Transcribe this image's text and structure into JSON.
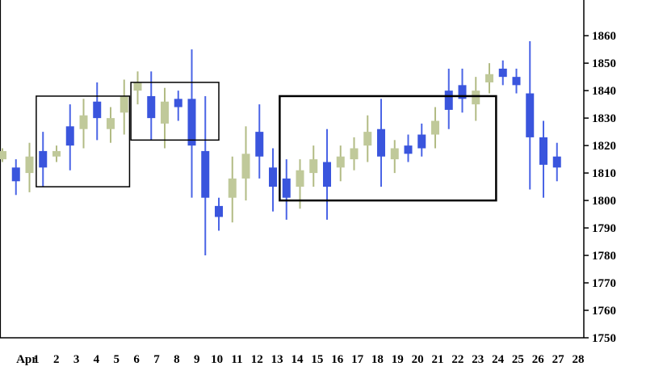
{
  "chart_data": {
    "type": "candlestick",
    "y_ticks": [
      1750,
      1760,
      1770,
      1780,
      1790,
      1800,
      1810,
      1820,
      1830,
      1840,
      1850,
      1860
    ],
    "ylim": [
      1750,
      1873
    ],
    "x_tick_labels": [
      "Apr",
      "1",
      "2",
      "3",
      "4",
      "5",
      "6",
      "7",
      "8",
      "9",
      "10",
      "11",
      "12",
      "13",
      "14",
      "15",
      "16",
      "17",
      "18",
      "19",
      "20",
      "21",
      "22",
      "23",
      "24",
      "25",
      "26",
      "27",
      "28"
    ],
    "colors": {
      "up": "#c0c99a",
      "down": "#3a55dd",
      "up_wick": "#b2bb84",
      "down_wick": "#4a64e6",
      "frame": "#000000",
      "box": "#000000"
    },
    "candles": [
      {
        "x": 0,
        "open": 1815,
        "close": 1818,
        "high": 1819,
        "low": 1814,
        "dir": "up"
      },
      {
        "x": 1,
        "open": 1812,
        "close": 1807,
        "high": 1815,
        "low": 1802,
        "dir": "down"
      },
      {
        "x": 2,
        "open": 1810,
        "close": 1816,
        "high": 1821,
        "low": 1803,
        "dir": "up"
      },
      {
        "x": 3,
        "open": 1818,
        "close": 1812,
        "high": 1825,
        "low": 1805,
        "dir": "down"
      },
      {
        "x": 4,
        "open": 1816,
        "close": 1818,
        "high": 1820,
        "low": 1814,
        "dir": "up"
      },
      {
        "x": 5,
        "open": 1827,
        "close": 1820,
        "high": 1835,
        "low": 1811,
        "dir": "down"
      },
      {
        "x": 6,
        "open": 1826,
        "close": 1831,
        "high": 1837,
        "low": 1819,
        "dir": "up"
      },
      {
        "x": 7,
        "open": 1836,
        "close": 1830,
        "high": 1843,
        "low": 1822,
        "dir": "down"
      },
      {
        "x": 8,
        "open": 1826,
        "close": 1830,
        "high": 1834,
        "low": 1821,
        "dir": "up"
      },
      {
        "x": 9,
        "open": 1832,
        "close": 1838,
        "high": 1844,
        "low": 1824,
        "dir": "up"
      },
      {
        "x": 10,
        "open": 1840,
        "close": 1843,
        "high": 1847,
        "low": 1835,
        "dir": "up"
      },
      {
        "x": 11,
        "open": 1838,
        "close": 1830,
        "high": 1847,
        "low": 1822,
        "dir": "down"
      },
      {
        "x": 12,
        "open": 1828,
        "close": 1836,
        "high": 1841,
        "low": 1819,
        "dir": "up"
      },
      {
        "x": 13,
        "open": 1837,
        "close": 1834,
        "high": 1840,
        "low": 1829,
        "dir": "down"
      },
      {
        "x": 14,
        "open": 1837,
        "close": 1820,
        "high": 1855,
        "low": 1801,
        "dir": "down"
      },
      {
        "x": 15,
        "open": 1818,
        "close": 1801,
        "high": 1838,
        "low": 1780,
        "dir": "down"
      },
      {
        "x": 16,
        "open": 1798,
        "close": 1794,
        "high": 1801,
        "low": 1789,
        "dir": "down"
      },
      {
        "x": 17,
        "open": 1801,
        "close": 1808,
        "high": 1816,
        "low": 1792,
        "dir": "up"
      },
      {
        "x": 18,
        "open": 1808,
        "close": 1817,
        "high": 1827,
        "low": 1800,
        "dir": "up"
      },
      {
        "x": 19,
        "open": 1825,
        "close": 1816,
        "high": 1835,
        "low": 1808,
        "dir": "down"
      },
      {
        "x": 20,
        "open": 1812,
        "close": 1805,
        "high": 1819,
        "low": 1796,
        "dir": "down"
      },
      {
        "x": 21,
        "open": 1808,
        "close": 1801,
        "high": 1815,
        "low": 1793,
        "dir": "down"
      },
      {
        "x": 22,
        "open": 1805,
        "close": 1811,
        "high": 1815,
        "low": 1797,
        "dir": "up"
      },
      {
        "x": 23,
        "open": 1810,
        "close": 1815,
        "high": 1820,
        "low": 1805,
        "dir": "up"
      },
      {
        "x": 24,
        "open": 1814,
        "close": 1805,
        "high": 1826,
        "low": 1793,
        "dir": "down"
      },
      {
        "x": 25,
        "open": 1812,
        "close": 1816,
        "high": 1820,
        "low": 1807,
        "dir": "up"
      },
      {
        "x": 26,
        "open": 1815,
        "close": 1819,
        "high": 1823,
        "low": 1811,
        "dir": "up"
      },
      {
        "x": 27,
        "open": 1820,
        "close": 1825,
        "high": 1831,
        "low": 1814,
        "dir": "up"
      },
      {
        "x": 28,
        "open": 1826,
        "close": 1816,
        "high": 1837,
        "low": 1805,
        "dir": "down"
      },
      {
        "x": 29,
        "open": 1815,
        "close": 1819,
        "high": 1822,
        "low": 1810,
        "dir": "up"
      },
      {
        "x": 30,
        "open": 1820,
        "close": 1817,
        "high": 1824,
        "low": 1814,
        "dir": "down"
      },
      {
        "x": 31,
        "open": 1824,
        "close": 1819,
        "high": 1828,
        "low": 1816,
        "dir": "down"
      },
      {
        "x": 32,
        "open": 1824,
        "close": 1829,
        "high": 1834,
        "low": 1819,
        "dir": "up"
      },
      {
        "x": 33,
        "open": 1840,
        "close": 1833,
        "high": 1848,
        "low": 1826,
        "dir": "down"
      },
      {
        "x": 34,
        "open": 1842,
        "close": 1837,
        "high": 1848,
        "low": 1832,
        "dir": "down"
      },
      {
        "x": 35,
        "open": 1835,
        "close": 1840,
        "high": 1845,
        "low": 1829,
        "dir": "up"
      },
      {
        "x": 36,
        "open": 1843,
        "close": 1846,
        "high": 1850,
        "low": 1839,
        "dir": "up"
      },
      {
        "x": 37,
        "open": 1848,
        "close": 1845,
        "high": 1851,
        "low": 1842,
        "dir": "down"
      },
      {
        "x": 38,
        "open": 1845,
        "close": 1842,
        "high": 1848,
        "low": 1839,
        "dir": "down"
      },
      {
        "x": 39,
        "open": 1839,
        "close": 1823,
        "high": 1858,
        "low": 1804,
        "dir": "down"
      },
      {
        "x": 40,
        "open": 1823,
        "close": 1813,
        "high": 1829,
        "low": 1801,
        "dir": "down"
      },
      {
        "x": 41,
        "open": 1816,
        "close": 1812,
        "high": 1821,
        "low": 1807,
        "dir": "down"
      }
    ],
    "boxes": [
      {
        "x0": 2.5,
        "x1": 9.4,
        "y0": 1805,
        "y1": 1838
      },
      {
        "x0": 9.5,
        "x1": 16.0,
        "y0": 1822,
        "y1": 1843
      },
      {
        "x0": 20.5,
        "x1": 36.5,
        "y0": 1800,
        "y1": 1838
      }
    ]
  }
}
